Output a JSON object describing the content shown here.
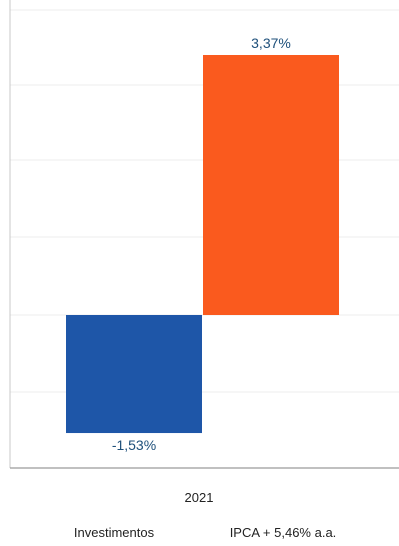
{
  "chart_data": {
    "type": "bar",
    "categories": [
      "2021"
    ],
    "series": [
      {
        "name": "Investimentos",
        "values": [
          -1.53
        ],
        "color": "#1e56a8",
        "label": "-1,53%"
      },
      {
        "name": "IPCA + 5,46% a.a.",
        "values": [
          3.37
        ],
        "color": "#fa5a1e",
        "label": "3,37%"
      }
    ],
    "ylim": [
      -2.5,
      4.0
    ],
    "grid": true,
    "legend": "bottom"
  }
}
